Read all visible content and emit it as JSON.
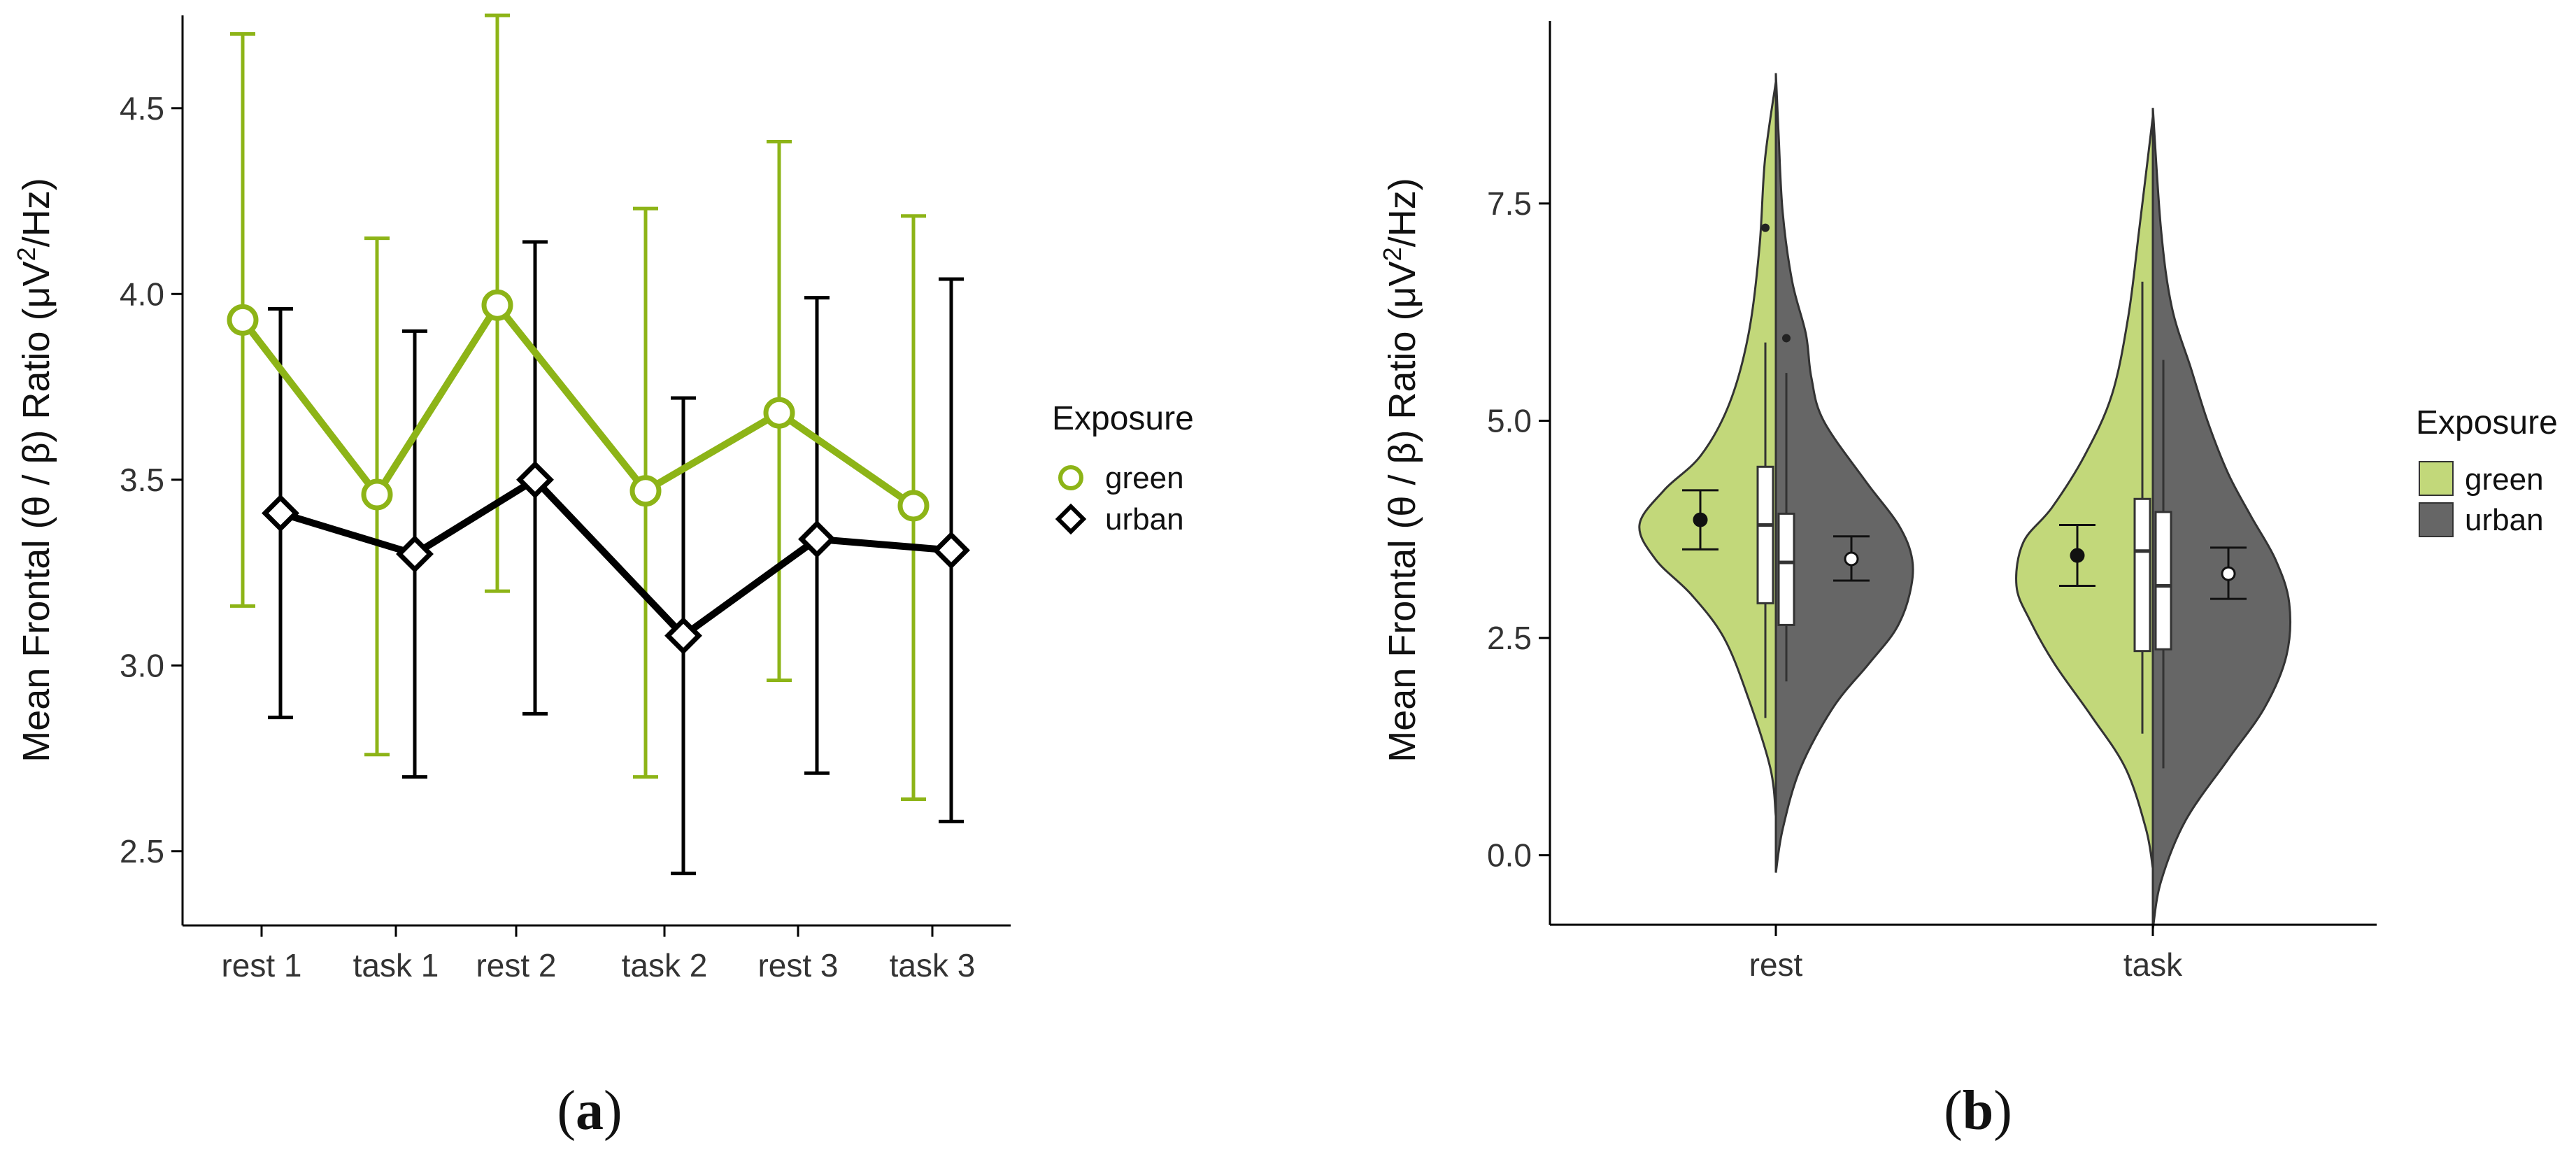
{
  "chart_data": [
    {
      "type": "line",
      "panel_label": "a",
      "ylabel_main": "Mean Frontal (θ / β) Ratio (μV",
      "ylabel_sup": "2",
      "ylabel_end": "/Hz)",
      "categories": [
        "rest 1",
        "task 1",
        "rest 2",
        "task 2",
        "rest 3",
        "task 3"
      ],
      "ylim": [
        2.3,
        4.75
      ],
      "yticks": [
        2.5,
        3.0,
        3.5,
        4.0,
        4.5
      ],
      "ytick_labels": [
        "2.5",
        "3.0",
        "3.5",
        "4.0",
        "4.5"
      ],
      "legend": {
        "title": "Exposure",
        "placement": "right"
      },
      "series": [
        {
          "name": "green",
          "color": "#8DB417",
          "marker": "circle",
          "values": [
            3.93,
            3.46,
            3.97,
            3.47,
            3.68,
            3.43
          ],
          "lower": [
            3.16,
            2.76,
            3.2,
            2.7,
            2.96,
            2.64
          ],
          "upper": [
            4.7,
            4.15,
            4.75,
            4.23,
            4.41,
            4.21
          ]
        },
        {
          "name": "urban",
          "color": "#000000",
          "marker": "diamond",
          "values": [
            3.41,
            3.3,
            3.5,
            3.08,
            3.34,
            3.31
          ],
          "lower": [
            2.86,
            2.7,
            2.87,
            2.44,
            2.71,
            2.58
          ],
          "upper": [
            3.96,
            3.9,
            4.14,
            3.72,
            3.99,
            4.04
          ]
        }
      ]
    },
    {
      "type": "violin",
      "panel_label": "b",
      "ylabel_main": "Mean Frontal (θ / β) Ratio (μV",
      "ylabel_sup": "2",
      "ylabel_end": "/Hz)",
      "categories": [
        "rest",
        "task"
      ],
      "ylim": [
        -0.8,
        9.6
      ],
      "yticks": [
        0.0,
        2.5,
        5.0,
        7.5
      ],
      "ytick_labels": [
        "0.0",
        "2.5",
        "5.0",
        "7.5"
      ],
      "legend": {
        "title": "Exposure",
        "placement": "right"
      },
      "series": [
        {
          "name": "green",
          "color": "#C2D87A",
          "groups": [
            {
              "category": "rest",
              "violin_y": [
                0.45,
                1.0,
                1.8,
                2.5,
                3.0,
                3.4,
                3.8,
                4.2,
                4.6,
                5.2,
                6.0,
                7.0,
                8.0,
                8.9
              ],
              "violin_density": [
                0.0,
                0.04,
                0.2,
                0.38,
                0.62,
                0.88,
                1.0,
                0.82,
                0.55,
                0.34,
                0.2,
                0.12,
                0.08,
                0.0
              ],
              "box": {
                "whisker_low": 1.58,
                "q1": 2.9,
                "median": 3.8,
                "q3": 4.47,
                "whisker_high": 5.9
              },
              "outliers": [
                7.22
              ],
              "mean": 3.86,
              "ci": [
                3.52,
                4.2
              ]
            },
            {
              "category": "task",
              "violin_y": [
                -0.15,
                0.3,
                1.0,
                1.6,
                2.2,
                2.7,
                3.1,
                3.6,
                4.0,
                4.6,
                5.3,
                6.2,
                7.2,
                8.5
              ],
              "violin_density": [
                0.0,
                0.05,
                0.2,
                0.45,
                0.72,
                0.9,
                1.0,
                0.95,
                0.74,
                0.5,
                0.3,
                0.18,
                0.1,
                0.0
              ],
              "box": {
                "whisker_low": 1.4,
                "q1": 2.35,
                "median": 3.5,
                "q3": 4.1,
                "whisker_high": 6.6
              },
              "outliers": [],
              "mean": 3.45,
              "ci": [
                3.1,
                3.8
              ]
            }
          ]
        },
        {
          "name": "urban",
          "color": "#666666",
          "groups": [
            {
              "category": "rest",
              "violin_y": [
                -0.2,
                0.3,
                1.0,
                1.7,
                2.2,
                2.6,
                3.0,
                3.4,
                3.8,
                4.3,
                5.0,
                5.5,
                6.0,
                6.6,
                7.4,
                8.3,
                9.0
              ],
              "violin_density": [
                0.0,
                0.05,
                0.18,
                0.42,
                0.68,
                0.88,
                0.98,
                1.0,
                0.9,
                0.66,
                0.35,
                0.26,
                0.22,
                0.12,
                0.05,
                0.02,
                0.0
              ],
              "box": {
                "whisker_low": 2.0,
                "q1": 2.65,
                "median": 3.37,
                "q3": 3.93,
                "whisker_high": 5.55
              },
              "outliers": [
                5.95
              ],
              "mean": 3.41,
              "ci": [
                3.16,
                3.67
              ]
            },
            {
              "category": "task",
              "violin_y": [
                -0.85,
                -0.3,
                0.4,
                1.1,
                1.7,
                2.3,
                2.9,
                3.4,
                3.9,
                4.4,
                5.0,
                5.6,
                6.3,
                7.2,
                8.6
              ],
              "violin_density": [
                0.0,
                0.06,
                0.24,
                0.55,
                0.82,
                0.98,
                1.0,
                0.9,
                0.72,
                0.55,
                0.4,
                0.28,
                0.14,
                0.06,
                0.0
              ],
              "box": {
                "whisker_low": 1.0,
                "q1": 2.37,
                "median": 3.1,
                "q3": 3.95,
                "whisker_high": 5.7
              },
              "outliers": [],
              "mean": 3.24,
              "ci": [
                2.95,
                3.54
              ]
            }
          ]
        }
      ]
    }
  ]
}
